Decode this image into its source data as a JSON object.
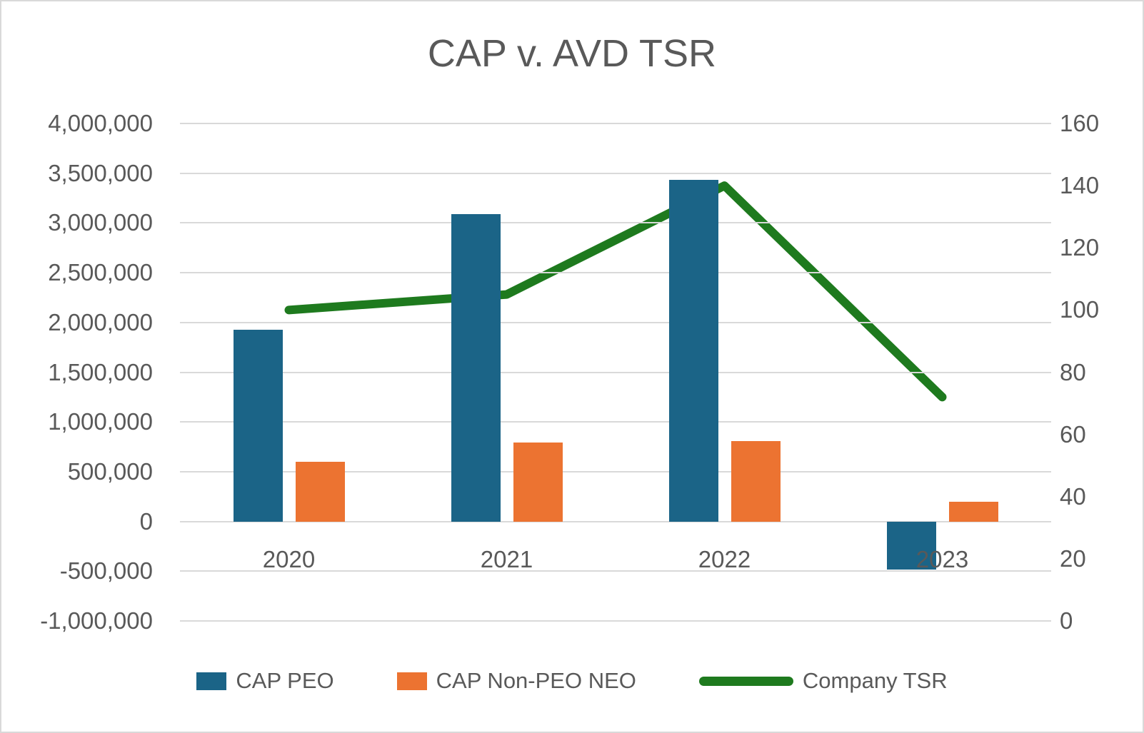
{
  "colors": {
    "background": "#ffffff",
    "border": "#d9d9d9",
    "grid": "#d9d9d9",
    "text": "#595959"
  },
  "chart_data": {
    "type": "combo-bar-line",
    "title": "CAP v. AVD TSR",
    "categories": [
      "2020",
      "2021",
      "2022",
      "2023"
    ],
    "series": [
      {
        "name": "CAP PEO",
        "type": "bar",
        "axis": "left",
        "color": "#1B6487",
        "values": [
          1930000,
          3090000,
          3430000,
          -480000
        ]
      },
      {
        "name": "CAP Non-PEO NEO",
        "type": "bar",
        "axis": "left",
        "color": "#EC7331",
        "values": [
          600000,
          795000,
          810000,
          195000
        ]
      },
      {
        "name": "Company TSR",
        "type": "line",
        "axis": "right",
        "color": "#1E7A1E",
        "values": [
          100,
          105,
          140,
          72
        ]
      }
    ],
    "left_axis": {
      "min": -1000000,
      "max": 4000000,
      "step": 500000,
      "tick_labels": [
        "4,000,000",
        "3,500,000",
        "3,000,000",
        "2,500,000",
        "2,000,000",
        "1,500,000",
        "1,000,000",
        "500,000",
        "0",
        "-500,000",
        "-1,000,000"
      ]
    },
    "right_axis": {
      "min": 0,
      "max": 160,
      "step": 20,
      "tick_labels": [
        "160",
        "140",
        "120",
        "100",
        "80",
        "60",
        "40",
        "20",
        "0"
      ]
    },
    "grid": true,
    "legend_position": "bottom"
  }
}
